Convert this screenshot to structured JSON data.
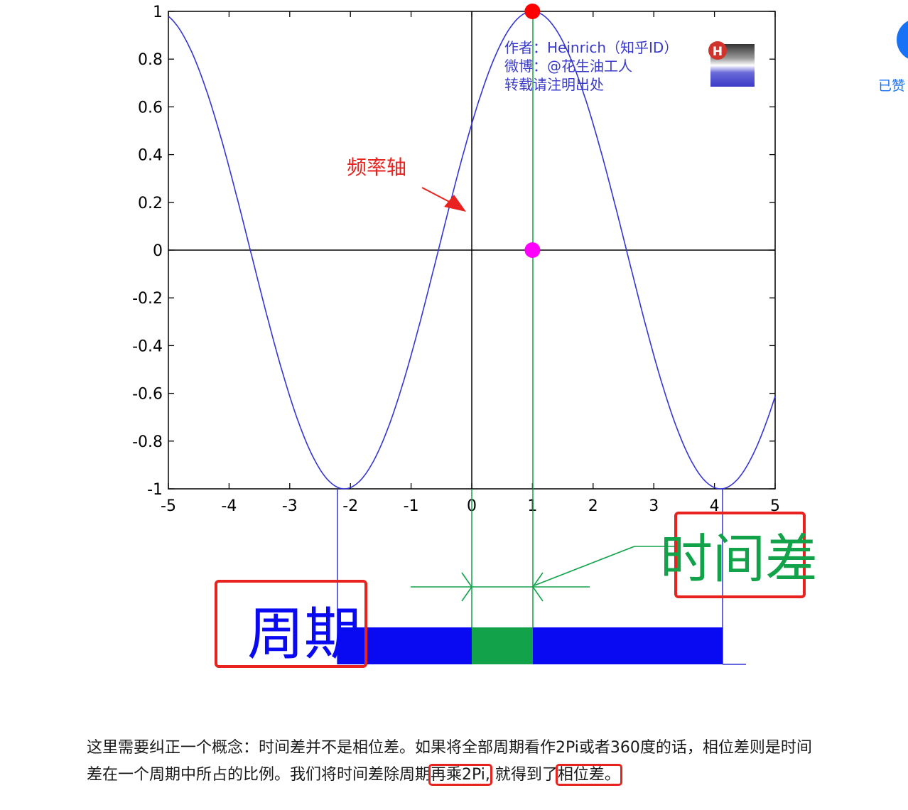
{
  "sidebar": {
    "like_label": "已赞"
  },
  "figure": {
    "watermark": {
      "line1": "作者：Heinrich（知乎ID）",
      "line2": "微博：@花生油工人",
      "line3": "转载请注明出处",
      "logo_letter": "H"
    },
    "annotations": {
      "frequency_axis": "频率轴",
      "time_difference": "时间差",
      "period": "周期"
    },
    "colors": {
      "curve": "#3535d6",
      "axis": "#000000",
      "green": "#11a24a",
      "period_bar": "#0a0af2",
      "time_diff_bar": "#11a24a",
      "red_box": "#e8231f",
      "peak_point": "#ff0000",
      "zero_point": "#ff00ff"
    }
  },
  "chart_data": {
    "type": "line",
    "x_ticks": [
      "-5",
      "-4",
      "-3",
      "-2",
      "-1",
      "0",
      "1",
      "2",
      "3",
      "4",
      "5"
    ],
    "y_ticks": [
      "1",
      "0.8",
      "0.6",
      "0.4",
      "0.2",
      "0",
      "-0.2",
      "-0.4",
      "-0.6",
      "-0.8",
      "-1"
    ],
    "xlim": [
      -5,
      5
    ],
    "ylim": [
      -1,
      1
    ],
    "grid": false,
    "series": [
      {
        "function": "cos(2*pi*(x-1)/6.2)",
        "x_range": [
          -5,
          5
        ],
        "amplitude": 1,
        "phase_shift": 1,
        "period": 6.2
      }
    ],
    "points": [
      {
        "x": 1,
        "y": 1,
        "color": "red"
      },
      {
        "x": 1,
        "y": 0,
        "color": "magenta"
      }
    ],
    "period_bar_x": [
      -2.1,
      4.1
    ],
    "time_difference_x": [
      0,
      1
    ]
  },
  "article": {
    "p1_a": "这里需要纠正一个概念：时间差并不是相位差。如果将全部周期看作2Pi或者360度的话，相位差则是时间差在一个周期中所占的比例。我们将时间差除周期",
    "p1_hl1": "再乘2Pi,",
    "p1_b": " 就得到了",
    "p1_hl2": "相位差。"
  }
}
